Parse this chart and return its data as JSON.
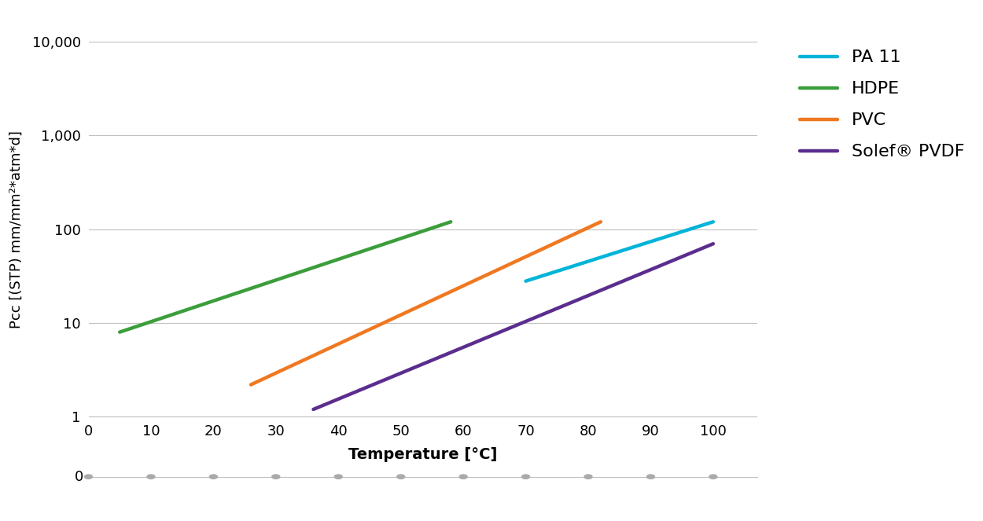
{
  "title": "",
  "xlabel": "Temperature [°C]",
  "ylabel": "Pcc [(STP) mm/mm²*atm*d]",
  "background_color": "#ffffff",
  "grid_color": "#c0c0c0",
  "xlim": [
    0,
    107
  ],
  "ylim_log": [
    1,
    10000
  ],
  "xticks": [
    0,
    10,
    20,
    30,
    40,
    50,
    60,
    70,
    80,
    90,
    100
  ],
  "ytick_labels": [
    "1",
    "10",
    "100",
    "1,000",
    "10,000"
  ],
  "ytick_values": [
    1,
    10,
    100,
    1000,
    10000
  ],
  "series": [
    {
      "label": "PA 11",
      "color": "#00b4d8",
      "x": [
        70,
        100
      ],
      "y": [
        28,
        120
      ]
    },
    {
      "label": "HDPE",
      "color": "#3a9e3a",
      "x": [
        5,
        58
      ],
      "y": [
        8,
        120
      ]
    },
    {
      "label": "PVC",
      "color": "#f07820",
      "x": [
        26,
        82
      ],
      "y": [
        2.2,
        120
      ]
    },
    {
      "label": "Solef® PVDF",
      "color": "#5b2d8e",
      "x": [
        36,
        100
      ],
      "y": [
        1.2,
        70
      ]
    }
  ],
  "legend_order": [
    "PA 11",
    "HDPE",
    "PVC",
    "Solef® PVDF"
  ],
  "line_width": 3.2,
  "xlabel_fontsize": 14,
  "ylabel_fontsize": 13,
  "tick_fontsize": 13,
  "legend_fontsize": 16
}
